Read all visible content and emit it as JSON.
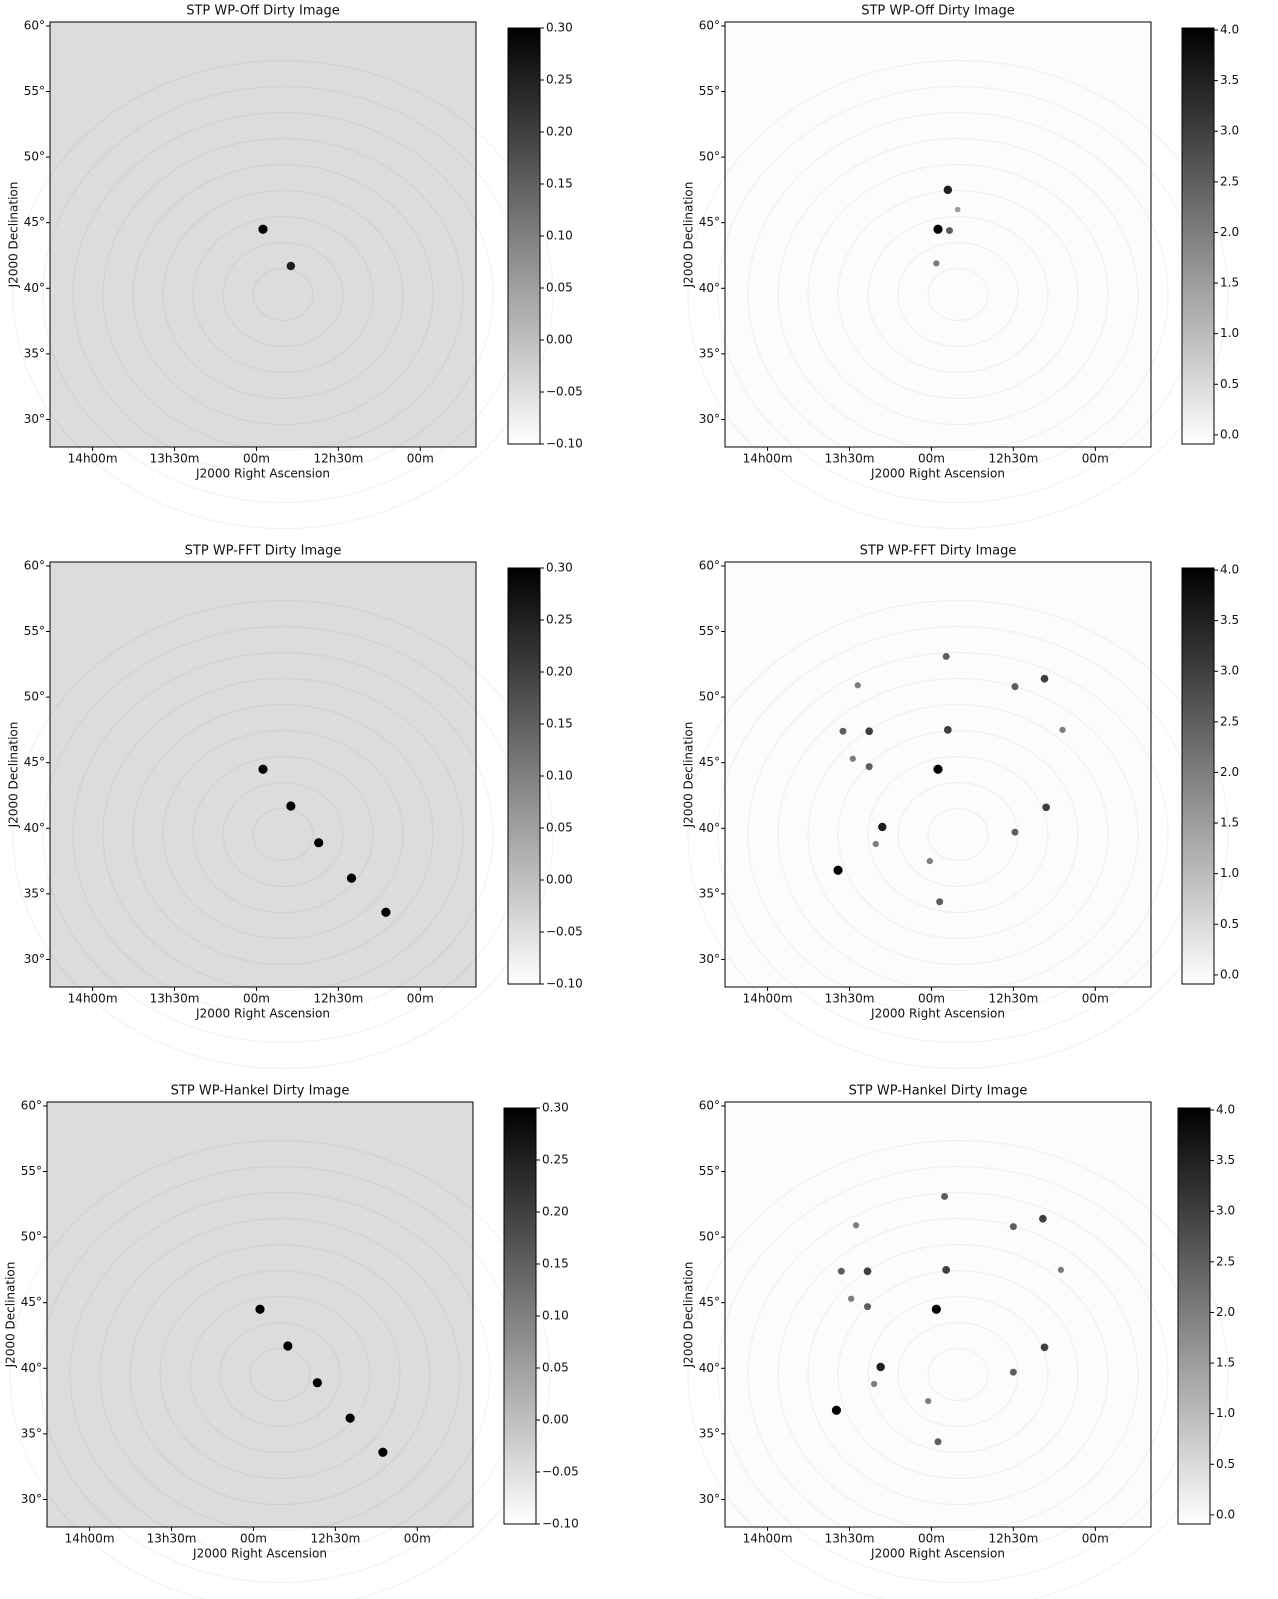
{
  "chart_data": [
    {
      "type": "image",
      "title": "STP WP-Off Dirty Image",
      "xlabel": "J2000 Right Ascension",
      "ylabel": "J2000 Declination",
      "xlim": [
        14.26,
        11.66
      ],
      "ylim": [
        27.9,
        60.3
      ],
      "xticks": [
        {
          "value": 14,
          "label": "14h00m"
        },
        {
          "value": 13.5,
          "label": "13h30m"
        },
        {
          "value": 13,
          "label": "00m"
        },
        {
          "value": 12.5,
          "label": "12h30m"
        },
        {
          "value": 12,
          "label": "00m"
        }
      ],
      "yticks": [
        {
          "value": 30,
          "label": "30°"
        },
        {
          "value": 35,
          "label": "35°"
        },
        {
          "value": 40,
          "label": "40°"
        },
        {
          "value": 45,
          "label": "45°"
        },
        {
          "value": 50,
          "label": "50°"
        },
        {
          "value": 55,
          "label": "55°"
        },
        {
          "value": 60,
          "label": "60°"
        }
      ],
      "colorbar": {
        "lim": [
          -0.1,
          0.3
        ],
        "ticks": [
          {
            "value": -0.1,
            "label": "−0.10"
          },
          {
            "value": -0.05,
            "label": "−0.05"
          },
          {
            "value": 0,
            "label": "0.00"
          },
          0.05,
          {
            "value": 0.1,
            "label": "0.10"
          },
          0.15,
          {
            "value": 0.2,
            "label": "0.20"
          },
          0.25,
          {
            "value": 0.3,
            "label": "0.30"
          }
        ]
      },
      "sources": {
        "x": [
          12.96,
          12.79
        ],
        "y": [
          44.5,
          41.7
        ],
        "values": [
          0.3,
          0.25
        ]
      }
    },
    {
      "type": "image",
      "title": "STP WP-Off Dirty Image",
      "xlabel": "J2000 Right Ascension",
      "ylabel": "J2000 Declination",
      "xlim": [
        14.26,
        11.66
      ],
      "ylim": [
        27.9,
        60.3
      ],
      "xticks": [
        {
          "value": 14,
          "label": "14h00m"
        },
        {
          "value": 13.5,
          "label": "13h30m"
        },
        {
          "value": 13,
          "label": "00m"
        },
        {
          "value": 12.5,
          "label": "12h30m"
        },
        {
          "value": 12,
          "label": "00m"
        }
      ],
      "yticks": [
        {
          "value": 30,
          "label": "30°"
        },
        {
          "value": 35,
          "label": "35°"
        },
        {
          "value": 40,
          "label": "40°"
        },
        {
          "value": 45,
          "label": "45°"
        },
        {
          "value": 50,
          "label": "50°"
        },
        {
          "value": 55,
          "label": "55°"
        },
        {
          "value": 60,
          "label": "60°"
        }
      ],
      "colorbar": {
        "lim": [
          -0.09,
          4.02
        ],
        "ticks": [
          {
            "value": 0,
            "label": "0.0"
          },
          0.5,
          {
            "value": 1,
            "label": "1.0"
          },
          1.5,
          {
            "value": 2,
            "label": "2.0"
          },
          2.5,
          {
            "value": 3,
            "label": "3.0"
          },
          3.5,
          {
            "value": 4,
            "label": "4.0"
          }
        ]
      },
      "sources": {
        "x": [
          12.96,
          12.9,
          12.89,
          12.97,
          12.84
        ],
        "y": [
          44.5,
          47.5,
          44.4,
          41.9,
          46.0
        ],
        "values": [
          4,
          3.5,
          2.5,
          2,
          1.5
        ]
      }
    },
    {
      "type": "image",
      "title": "STP WP-FFT Dirty Image",
      "xlabel": "J2000 Right Ascension",
      "ylabel": "J2000 Declination",
      "xlim": [
        14.26,
        11.66
      ],
      "ylim": [
        27.9,
        60.3
      ],
      "xticks": [
        {
          "value": 14,
          "label": "14h00m"
        },
        {
          "value": 13.5,
          "label": "13h30m"
        },
        {
          "value": 13,
          "label": "00m"
        },
        {
          "value": 12.5,
          "label": "12h30m"
        },
        {
          "value": 12,
          "label": "00m"
        }
      ],
      "yticks": [
        {
          "value": 30,
          "label": "30°"
        },
        {
          "value": 35,
          "label": "35°"
        },
        {
          "value": 40,
          "label": "40°"
        },
        {
          "value": 45,
          "label": "45°"
        },
        {
          "value": 50,
          "label": "50°"
        },
        {
          "value": 55,
          "label": "55°"
        },
        {
          "value": 60,
          "label": "60°"
        }
      ],
      "colorbar": {
        "lim": [
          -0.1,
          0.3
        ],
        "ticks": [
          {
            "value": -0.1,
            "label": "−0.10"
          },
          {
            "value": -0.05,
            "label": "−0.05"
          },
          {
            "value": 0,
            "label": "0.00"
          },
          0.05,
          {
            "value": 0.1,
            "label": "0.10"
          },
          0.15,
          {
            "value": 0.2,
            "label": "0.20"
          },
          0.25,
          {
            "value": 0.3,
            "label": "0.30"
          }
        ]
      },
      "sources": {
        "x": [
          12.96,
          12.79,
          12.62,
          12.42,
          12.21
        ],
        "y": [
          44.5,
          41.7,
          38.9,
          36.2,
          33.6
        ],
        "values": [
          0.3,
          0.3,
          0.3,
          0.3,
          0.3
        ]
      }
    },
    {
      "type": "image",
      "title": "STP WP-FFT Dirty Image",
      "xlabel": "J2000 Right Ascension",
      "ylabel": "J2000 Declination",
      "xlim": [
        14.26,
        11.66
      ],
      "ylim": [
        27.9,
        60.3
      ],
      "xticks": [
        {
          "value": 14,
          "label": "14h00m"
        },
        {
          "value": 13.5,
          "label": "13h30m"
        },
        {
          "value": 13,
          "label": "00m"
        },
        {
          "value": 12.5,
          "label": "12h30m"
        },
        {
          "value": 12,
          "label": "00m"
        }
      ],
      "yticks": [
        {
          "value": 30,
          "label": "30°"
        },
        {
          "value": 35,
          "label": "35°"
        },
        {
          "value": 40,
          "label": "40°"
        },
        {
          "value": 45,
          "label": "45°"
        },
        {
          "value": 50,
          "label": "50°"
        },
        {
          "value": 55,
          "label": "55°"
        },
        {
          "value": 60,
          "label": "60°"
        }
      ],
      "colorbar": {
        "lim": [
          -0.09,
          4.02
        ],
        "ticks": [
          {
            "value": 0,
            "label": "0.0"
          },
          0.5,
          {
            "value": 1,
            "label": "1.0"
          },
          1.5,
          {
            "value": 2,
            "label": "2.0"
          },
          2.5,
          {
            "value": 3,
            "label": "3.0"
          },
          3.5,
          {
            "value": 4,
            "label": "4.0"
          }
        ]
      },
      "sources": {
        "x": [
          12.96,
          13.57,
          13.3,
          12.9,
          12.3,
          12.31,
          12.49,
          13.38,
          13.54,
          12.91,
          12.49,
          13.48,
          13.38,
          12.2,
          12.95,
          13.45,
          13.01,
          13.34
        ],
        "y": [
          44.5,
          36.8,
          40.1,
          47.5,
          41.6,
          51.4,
          39.7,
          47.4,
          47.4,
          53.1,
          50.8,
          45.3,
          44.7,
          47.5,
          34.4,
          50.9,
          37.5,
          38.8
        ],
        "values": [
          4,
          4,
          3.5,
          3,
          3,
          3,
          2.5,
          3,
          2.5,
          2.5,
          2.5,
          2,
          2.5,
          2,
          2.5,
          2,
          2,
          2
        ]
      }
    },
    {
      "type": "image",
      "title": "STP WP-Hankel Dirty Image",
      "xlabel": "J2000 Right Ascension",
      "ylabel": "J2000 Declination",
      "xlim": [
        14.26,
        11.66
      ],
      "ylim": [
        27.9,
        60.3
      ],
      "xticks": [
        {
          "value": 14,
          "label": "14h00m"
        },
        {
          "value": 13.5,
          "label": "13h30m"
        },
        {
          "value": 13,
          "label": "00m"
        },
        {
          "value": 12.5,
          "label": "12h30m"
        },
        {
          "value": 12,
          "label": "00m"
        }
      ],
      "yticks": [
        {
          "value": 30,
          "label": "30°"
        },
        {
          "value": 35,
          "label": "35°"
        },
        {
          "value": 40,
          "label": "40°"
        },
        {
          "value": 45,
          "label": "45°"
        },
        {
          "value": 50,
          "label": "50°"
        },
        {
          "value": 55,
          "label": "55°"
        },
        {
          "value": 60,
          "label": "60°"
        }
      ],
      "colorbar": {
        "lim": [
          -0.1,
          0.3
        ],
        "ticks": [
          {
            "value": -0.1,
            "label": "−0.10"
          },
          {
            "value": -0.05,
            "label": "−0.05"
          },
          {
            "value": 0,
            "label": "0.00"
          },
          0.05,
          {
            "value": 0.1,
            "label": "0.10"
          },
          0.15,
          {
            "value": 0.2,
            "label": "0.20"
          },
          0.25,
          {
            "value": 0.3,
            "label": "0.30"
          }
        ]
      },
      "sources": {
        "x": [
          12.96,
          12.79,
          12.61,
          12.41,
          12.21
        ],
        "y": [
          44.5,
          41.7,
          38.9,
          36.2,
          33.6
        ],
        "values": [
          0.3,
          0.3,
          0.3,
          0.3,
          0.3
        ]
      }
    },
    {
      "type": "image",
      "title": "STP WP-Hankel Dirty Image",
      "xlabel": "J2000 Right Ascension",
      "ylabel": "J2000 Declination",
      "xlim": [
        14.26,
        11.66
      ],
      "ylim": [
        27.9,
        60.3
      ],
      "xticks": [
        {
          "value": 14,
          "label": "14h00m"
        },
        {
          "value": 13.5,
          "label": "13h30m"
        },
        {
          "value": 13,
          "label": "00m"
        },
        {
          "value": 12.5,
          "label": "12h30m"
        },
        {
          "value": 12,
          "label": "00m"
        }
      ],
      "yticks": [
        {
          "value": 30,
          "label": "30°"
        },
        {
          "value": 35,
          "label": "35°"
        },
        {
          "value": 40,
          "label": "40°"
        },
        {
          "value": 45,
          "label": "45°"
        },
        {
          "value": 50,
          "label": "50°"
        },
        {
          "value": 55,
          "label": "55°"
        },
        {
          "value": 60,
          "label": "60°"
        }
      ],
      "colorbar": {
        "lim": [
          -0.09,
          4.02
        ],
        "ticks": [
          {
            "value": 0,
            "label": "0.0"
          },
          0.5,
          {
            "value": 1,
            "label": "1.0"
          },
          1.5,
          {
            "value": 2,
            "label": "2.0"
          },
          2.5,
          {
            "value": 3,
            "label": "3.0"
          },
          3.5,
          {
            "value": 4,
            "label": "4.0"
          }
        ]
      },
      "sources": {
        "x": [
          12.97,
          13.58,
          13.31,
          12.91,
          12.31,
          12.32,
          12.5,
          13.39,
          13.55,
          12.92,
          12.5,
          13.49,
          13.39,
          12.21,
          12.96,
          13.46,
          13.02,
          13.35
        ],
        "y": [
          44.5,
          36.8,
          40.1,
          47.5,
          41.6,
          51.4,
          39.7,
          47.4,
          47.4,
          53.1,
          50.8,
          45.3,
          44.7,
          47.5,
          34.4,
          50.9,
          37.5,
          38.8
        ],
        "values": [
          4,
          4,
          3.5,
          3,
          3,
          3,
          2.5,
          3,
          2.5,
          2.5,
          2.5,
          2,
          2.5,
          2,
          2.5,
          2,
          2,
          2
        ]
      }
    }
  ]
}
